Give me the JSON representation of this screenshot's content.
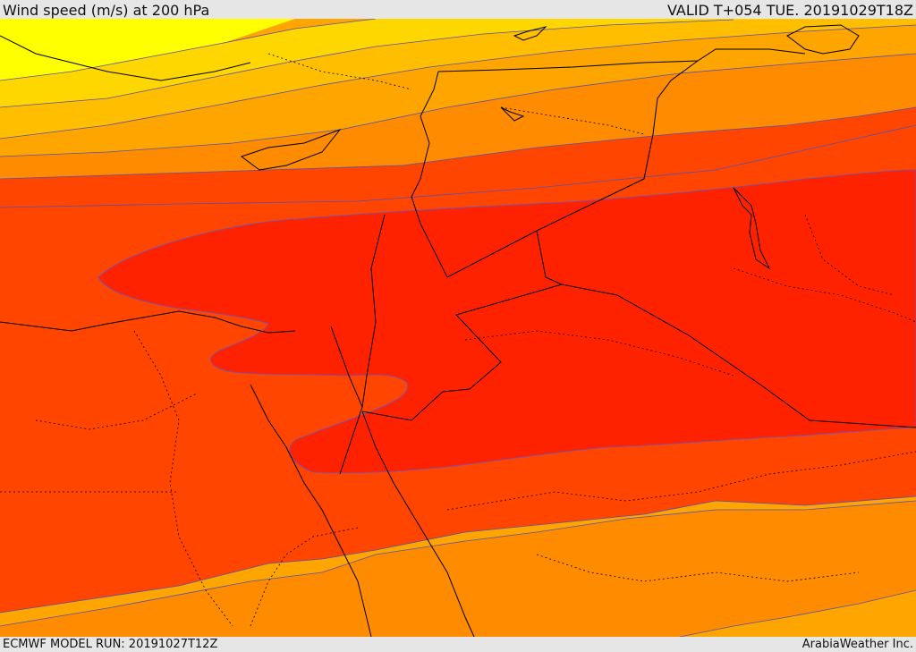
{
  "header": {
    "title": "Wind speed (m/s) at 200 hPa",
    "valid_time": "VALID T+054 TUE. 20191029T18Z"
  },
  "footer": {
    "model_run": "ECMWF MODEL RUN: 20191027T12Z",
    "credit": "ArabiaWeather Inc."
  },
  "map": {
    "fill_colors": {
      "band_yellow": "#ffff00",
      "band_gold": "#ffd700",
      "band_amber": "#ffbf00",
      "band_orange_light": "#ffa500",
      "band_orange": "#ff8c00",
      "band_orange_dark": "#ff6600",
      "band_red_orange": "#ff4500",
      "band_red": "#ff2200"
    },
    "contour_color": "#6655cc",
    "border_color": "#000000"
  }
}
